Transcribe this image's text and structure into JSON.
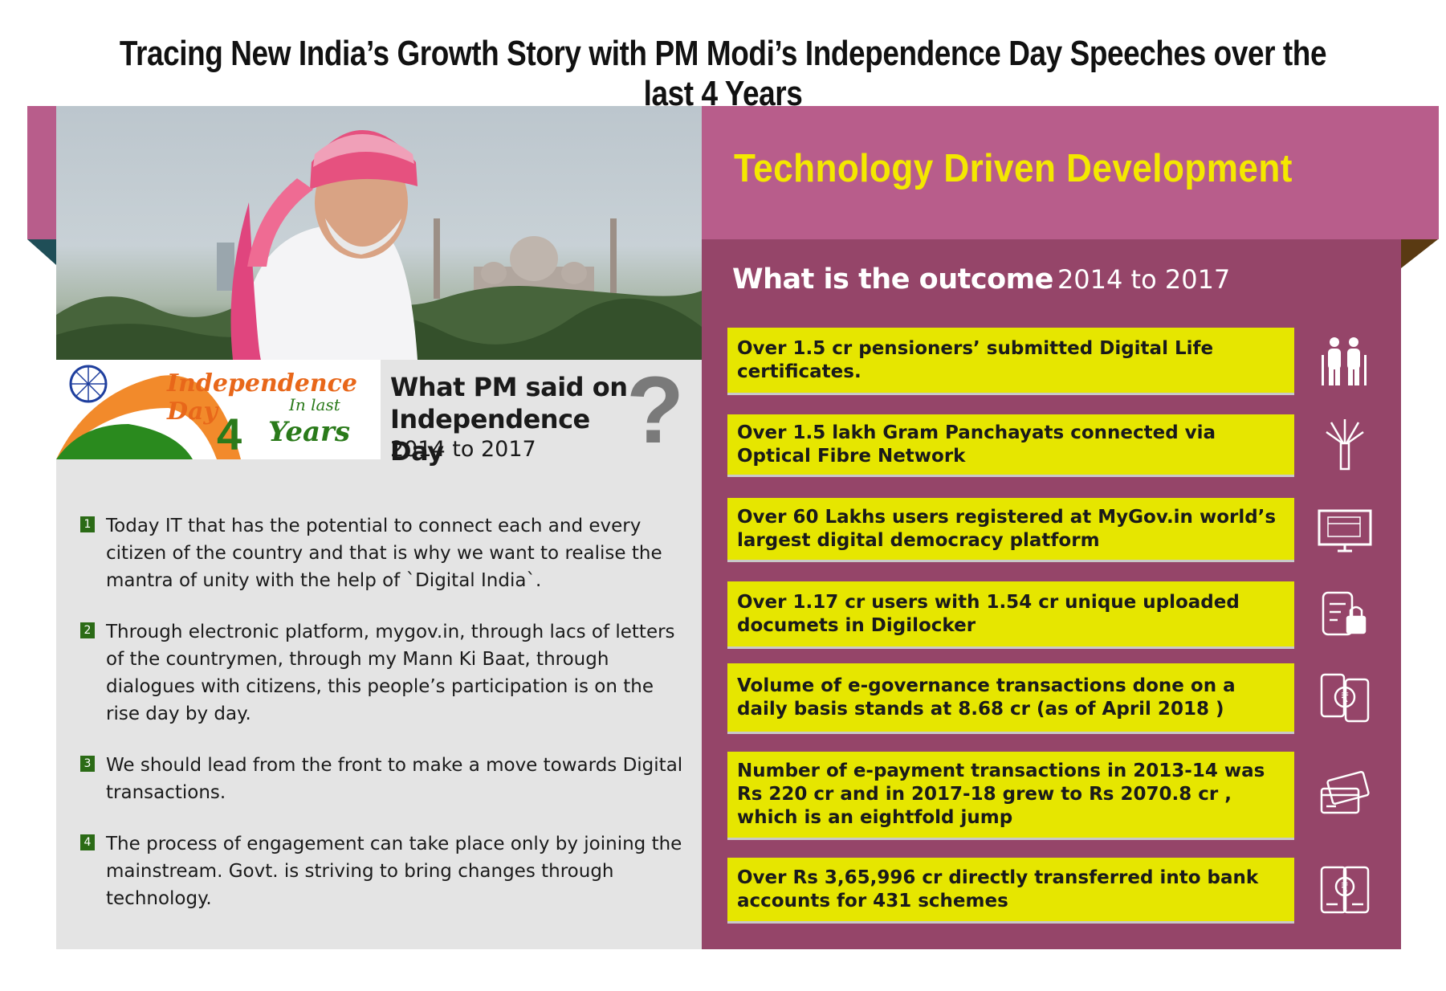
{
  "header": {
    "title": "Tracing New India’s Growth Story with PM Modi’s Independence Day Speeches over the last 4 Years"
  },
  "left": {
    "banner": {
      "line1": "Independence Day",
      "line2": "In last",
      "number": "4",
      "line3": "Years"
    },
    "heading": "What PM said on Independence Day",
    "years": "2014 to 2017",
    "question_mark": "?",
    "points": [
      {
        "num": "1",
        "text": "Today  IT that has the potential to connect each and every citizen of the country and that is why we want to realise the mantra of unity with the help of `Digital India`."
      },
      {
        "num": "2",
        "text": "Through electronic platform, mygov.in, through lacs of letters of the countrymen, through my Mann Ki Baat, through dialogues with citizens, this people’s participation is on the rise day by day."
      },
      {
        "num": "3",
        "text": "We should lead from the front to make a move towards Digital transactions."
      },
      {
        "num": "4",
        "text": "The process of engagement can take place only by joining the mainstream. Govt. is striving to bring changes through technology."
      }
    ]
  },
  "right": {
    "section_title": "Technology Driven Development",
    "outcome_bold": "What is the outcome",
    "outcome_years": "2014 to 2017",
    "stats": [
      {
        "text": "Over 1.5 cr pensioners’ submitted Digital Life certificates.",
        "icon": "elderly-couple-icon"
      },
      {
        "text": "Over 1.5 lakh Gram Panchayats connected via Optical Fibre Network",
        "icon": "optical-fibre-icon"
      },
      {
        "text": "Over 60 Lakhs users registered at MyGov.in world’s largest digital democracy platform",
        "icon": "monitor-icon"
      },
      {
        "text": "Over 1.17 cr users with 1.54 cr unique uploaded documets in Digilocker",
        "icon": "document-lock-icon"
      },
      {
        "text": "Volume of e-governance transactions done on a daily basis stands at 8.68 cr (as of April 2018 )",
        "icon": "phone-rupee-transfer-icon"
      },
      {
        "text": "Number of e-payment transactions in 2013-14 was Rs 220 cr and in 2017-18 grew to Rs 2070.8 cr , which is an eightfold jump",
        "icon": "credit-card-icon"
      },
      {
        "text": "Over Rs 3,65,996 cr directly transferred into bank accounts for 431 schemes",
        "icon": "mobile-rupee-icon"
      }
    ]
  },
  "colors": {
    "ribbon": "#b85d8b",
    "panel": "#954569",
    "stat_box": "#e6e600",
    "title_yellow": "#f4e800",
    "saffron": "#e8671a",
    "green": "#2a7a1a"
  }
}
